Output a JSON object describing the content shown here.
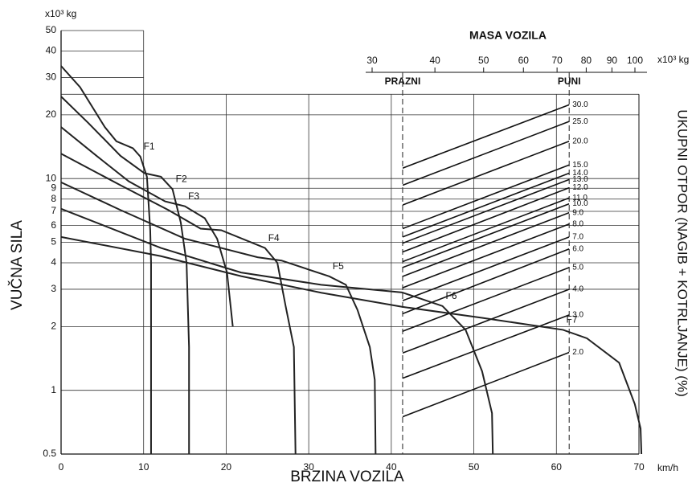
{
  "chart_data": {
    "type": "line",
    "log_y": true,
    "color": "#222222",
    "xlabel": "BRZINA VOZILA",
    "x_unit": "km/h",
    "ylabel": "VUČNA SILA",
    "y_unit": "x10³ kg",
    "y2label": "UKUPNI OTPOR (NAGIB + KOTRLJANJE) (%)",
    "xlim": [
      0,
      70
    ],
    "xticks": [
      0,
      10,
      20,
      30,
      40,
      50,
      60,
      70
    ],
    "ylim": [
      0.5,
      50
    ],
    "yticks": [
      0.5,
      1,
      2,
      3,
      4,
      5,
      6,
      7,
      8,
      9,
      10,
      20,
      30,
      40,
      50
    ],
    "grid": true,
    "grid_ylim": [
      0.5,
      25
    ],
    "series": [
      {
        "name": "F1",
        "x": [
          0,
          2.3,
          5.3,
          6.7,
          8.7,
          9.6,
          10.4,
          10.8,
          10.9,
          10.9
        ],
        "values": [
          34,
          27,
          17.5,
          15,
          13.9,
          12.7,
          10.2,
          5.7,
          4,
          0.5
        ]
      },
      {
        "name": "F2",
        "x": [
          0,
          3.3,
          7.2,
          10.1,
          12.1,
          13.5,
          14.5,
          15.2,
          15.5,
          15.5
        ],
        "values": [
          24.4,
          18.3,
          12.8,
          10.6,
          10.2,
          8.9,
          6.2,
          4,
          1.6,
          0.5
        ]
      },
      {
        "name": "F3",
        "x": [
          0,
          4.3,
          8.2,
          12.6,
          15,
          17.4,
          18.9,
          20.1,
          20.8
        ],
        "values": [
          17.5,
          12.8,
          9.7,
          7.8,
          7.4,
          6.5,
          5.2,
          3.6,
          2
        ]
      },
      {
        "name": "F4",
        "x": [
          0,
          7.2,
          13,
          16.9,
          19.4,
          24.7,
          26.2,
          27.2,
          28.2,
          28.4
        ],
        "values": [
          13.1,
          9.3,
          7.1,
          5.8,
          5.7,
          4.7,
          4,
          2.5,
          1.6,
          0.5
        ]
      },
      {
        "name": "F5",
        "x": [
          0,
          7.2,
          15,
          23.8,
          26.7,
          32.5,
          34.5,
          35.9,
          37.4,
          38,
          38.1
        ],
        "values": [
          9.6,
          7.1,
          5.2,
          4.25,
          4.1,
          3.45,
          3.15,
          2.4,
          1.6,
          1.12,
          0.5
        ]
      },
      {
        "name": "F6",
        "x": [
          0,
          12.1,
          21.8,
          31.5,
          41.3,
          46.2,
          49,
          51,
          52.2,
          52.3
        ],
        "values": [
          7.2,
          4.7,
          3.6,
          3.15,
          2.9,
          2.5,
          1.93,
          1.23,
          0.78,
          0.5
        ]
      },
      {
        "name": "F7",
        "x": [
          0,
          12.1,
          21.8,
          31.5,
          41.3,
          51,
          60.8,
          63.7,
          67.6,
          69.5,
          70.2,
          70.3
        ],
        "values": [
          5.3,
          4.3,
          3.46,
          2.89,
          2.48,
          2.2,
          1.93,
          1.76,
          1.35,
          0.86,
          0.66,
          0.5
        ]
      }
    ],
    "mass_axis": {
      "title": "MASA VOZILA",
      "unit": "x10³ kg",
      "log": true,
      "lim": [
        30,
        100
      ],
      "ticks": [
        30,
        40,
        50,
        60,
        70,
        80,
        90,
        100
      ],
      "markers": [
        {
          "label": "PRAZNI",
          "value": 34.5
        },
        {
          "label": "PUNI",
          "value": 74
        }
      ]
    },
    "resistance": [
      {
        "label": "30.0",
        "values": [
          11.2,
          22.3
        ]
      },
      {
        "label": "25.0",
        "values": [
          9.3,
          18.6
        ]
      },
      {
        "label": "20.0",
        "values": [
          7.5,
          15
        ]
      },
      {
        "label": "15.0",
        "values": [
          5.8,
          11.6
        ]
      },
      {
        "label": "14.0",
        "values": [
          5.3,
          10.6
        ]
      },
      {
        "label": "13.0",
        "values": [
          4.95,
          9.9
        ]
      },
      {
        "label": "12.0",
        "values": [
          4.5,
          9.05
        ]
      },
      {
        "label": "11.0",
        "values": [
          4.05,
          8.1
        ]
      },
      {
        "label": "10.0",
        "values": [
          3.8,
          7.6
        ]
      },
      {
        "label": "9.0",
        "values": [
          3.45,
          6.9
        ]
      },
      {
        "label": "8.0",
        "values": [
          3.05,
          6.1
        ]
      },
      {
        "label": "7.0",
        "values": [
          2.65,
          5.3
        ]
      },
      {
        "label": "6.0",
        "values": [
          2.3,
          4.65
        ]
      },
      {
        "label": "5.0",
        "values": [
          1.9,
          3.8
        ]
      },
      {
        "label": "4.0",
        "values": [
          1.5,
          3.0
        ]
      },
      {
        "label": "3.0",
        "values": [
          1.14,
          2.27
        ]
      },
      {
        "label": "2.0",
        "values": [
          0.75,
          1.51
        ]
      }
    ]
  }
}
